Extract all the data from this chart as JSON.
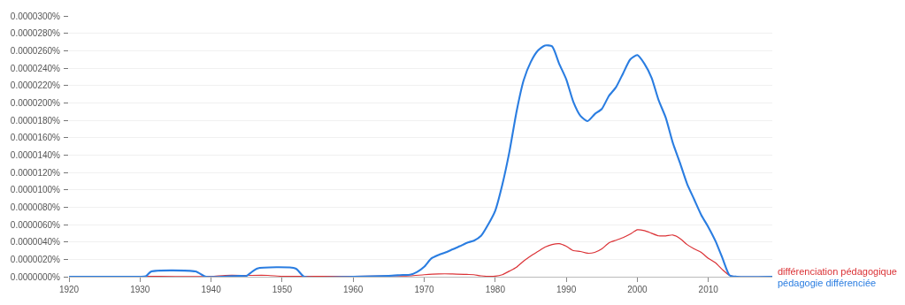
{
  "chart_data": {
    "type": "line",
    "xlim": [
      1920,
      2019
    ],
    "xticks": [
      1920,
      1930,
      1940,
      1950,
      1960,
      1970,
      1980,
      1990,
      2000,
      2010
    ],
    "ylim": [
      0,
      3e-05
    ],
    "yticks": [
      {
        "value": 0,
        "label": "0.0000000%"
      },
      {
        "value": 2e-06,
        "label": "0.0000020%"
      },
      {
        "value": 4e-06,
        "label": "0.0000040%"
      },
      {
        "value": 6e-06,
        "label": "0.0000060%"
      },
      {
        "value": 8e-06,
        "label": "0.0000080%"
      },
      {
        "value": 1e-05,
        "label": "0.0000100%"
      },
      {
        "value": 1.2e-05,
        "label": "0.0000120%"
      },
      {
        "value": 1.4e-05,
        "label": "0.0000140%"
      },
      {
        "value": 1.6e-05,
        "label": "0.0000160%"
      },
      {
        "value": 1.8e-05,
        "label": "0.0000180%"
      },
      {
        "value": 2e-05,
        "label": "0.0000200%"
      },
      {
        "value": 2.2e-05,
        "label": "0.0000220%"
      },
      {
        "value": 2.4e-05,
        "label": "0.0000240%"
      },
      {
        "value": 2.6e-05,
        "label": "0.0000260%"
      },
      {
        "value": 2.8e-05,
        "label": "0.0000280%"
      },
      {
        "value": 3e-05,
        "label": "0.0000300%"
      }
    ],
    "grid": "y",
    "marker": "none",
    "line_style": "solid",
    "series": [
      {
        "name": "différenciation pédagogique",
        "color": "#db3236",
        "x": [
          1920,
          1926,
          1930,
          1935,
          1940,
          1942,
          1945,
          1948,
          1950,
          1955,
          1960,
          1966,
          1968,
          1970,
          1972,
          1974,
          1976,
          1977,
          1978,
          1980,
          1981,
          1982,
          1983,
          1984,
          1985,
          1986,
          1987,
          1988,
          1989,
          1990,
          1991,
          1992,
          1993,
          1994,
          1995,
          1996,
          1997,
          1998,
          1999,
          2000,
          2001,
          2002,
          2003,
          2004,
          2005,
          2006,
          2007,
          2008,
          2009,
          2010,
          2011,
          2012,
          2013,
          2014,
          2019
        ],
        "values": [
          2e-08,
          2e-08,
          5e-08,
          2e-08,
          3e-08,
          1.5e-07,
          1.5e-07,
          1.5e-07,
          5e-08,
          3e-08,
          5e-08,
          1e-07,
          1e-07,
          2.3e-07,
          3.2e-07,
          3.2e-07,
          2.6e-07,
          2.3e-07,
          1e-07,
          6e-08,
          2.3e-07,
          6.5e-07,
          1.1e-06,
          1.8e-06,
          2.4e-06,
          2.9e-06,
          3.4e-06,
          3.7e-06,
          3.8e-06,
          3.5e-06,
          3e-06,
          2.9e-06,
          2.7e-06,
          2.8e-06,
          3.2e-06,
          3.9e-06,
          4.2e-06,
          4.5e-06,
          4.9e-06,
          5.4e-06,
          5.3e-06,
          5e-06,
          4.7e-06,
          4.7e-06,
          4.8e-06,
          4.4e-06,
          3.7e-06,
          3.2e-06,
          2.8e-06,
          2.1e-06,
          1.6e-06,
          8e-07,
          1.5e-07,
          0,
          0
        ]
      },
      {
        "name": "pédagogie différenciée",
        "color": "#2a7de1",
        "x": [
          1920,
          1930,
          1930.8,
          1931.6,
          1937.8,
          1939.3,
          1944,
          1945,
          1945.5,
          1946.5,
          1951.9,
          1953.1,
          1960,
          1965,
          1967,
          1968,
          1969,
          1970,
          1971,
          1972,
          1973,
          1974,
          1975,
          1976,
          1977,
          1978,
          1979,
          1980,
          1981,
          1982,
          1983,
          1984,
          1985,
          1986,
          1987,
          1988,
          1989,
          1990,
          1991,
          1992,
          1993,
          1994,
          1995,
          1996,
          1997,
          1998,
          1999,
          2000,
          2001,
          2002,
          2003,
          2004,
          2005,
          2006,
          2007,
          2008,
          2009,
          2010,
          2011,
          2012,
          2013,
          2014,
          2019
        ],
        "values": [
          0,
          0,
          5e-08,
          6e-07,
          6e-07,
          0,
          1e-07,
          1e-07,
          4e-07,
          9.5e-07,
          9.5e-07,
          0,
          0,
          1e-07,
          2e-07,
          2.3e-07,
          5.5e-07,
          1.14e-06,
          2.1e-06,
          2.5e-06,
          2.8e-06,
          3.15e-06,
          3.5e-06,
          3.9e-06,
          4.15e-06,
          4.7e-06,
          6e-06,
          7.6e-06,
          1.06e-05,
          1.44e-05,
          1.9e-05,
          2.26e-05,
          2.47e-05,
          2.6e-05,
          2.66e-05,
          2.65e-05,
          2.45e-05,
          2.27e-05,
          2.01e-05,
          1.85e-05,
          1.79e-05,
          1.87e-05,
          1.93e-05,
          2.08e-05,
          2.18e-05,
          2.34e-05,
          2.5e-05,
          2.55e-05,
          2.45e-05,
          2.29e-05,
          2.03e-05,
          1.83e-05,
          1.54e-05,
          1.31e-05,
          1.07e-05,
          8.9e-06,
          7.1e-06,
          5.7e-06,
          4.1e-06,
          2.1e-06,
          1.5e-07,
          0,
          0
        ]
      }
    ]
  }
}
